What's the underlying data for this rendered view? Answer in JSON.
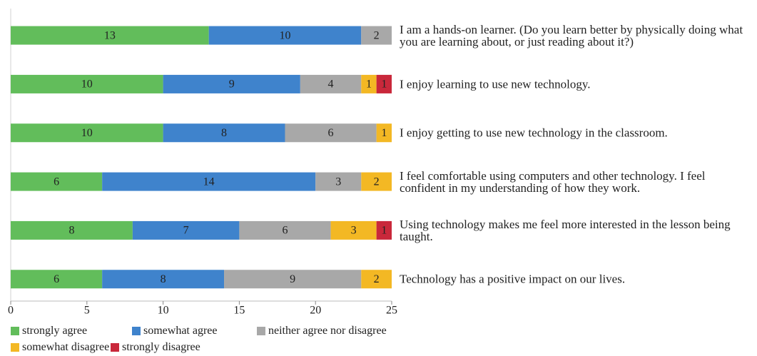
{
  "chart_data": {
    "type": "stacked-bar-horizontal",
    "categories": [
      "I am a hands-on learner. (Do you learn better by physically doing what you are learning about, or just reading about it?)",
      "I enjoy learning to use new technology.",
      "I enjoy getting to use new technology in the classroom.",
      "I feel comfortable using computers and other technology. I feel confident in my understanding of how they work.",
      "Using technology makes me feel more interested in the lesson being taught.",
      "Technology has a positive impact on our lives."
    ],
    "series": [
      {
        "name": "strongly agree",
        "color": "#62bd5b",
        "values": [
          13,
          10,
          10,
          6,
          8,
          6
        ]
      },
      {
        "name": "somewhat agree",
        "color": "#3f83cc",
        "values": [
          10,
          9,
          8,
          14,
          7,
          8
        ]
      },
      {
        "name": "neither agree nor disagree",
        "color": "#a8a8a8",
        "values": [
          2,
          4,
          6,
          3,
          6,
          9
        ]
      },
      {
        "name": "somewhat disagree",
        "color": "#f3b824",
        "values": [
          0,
          1,
          1,
          2,
          3,
          2
        ]
      },
      {
        "name": "strongly disagree",
        "color": "#c9283b",
        "values": [
          0,
          1,
          0,
          0,
          1,
          0
        ]
      }
    ],
    "xlim": [
      0,
      25
    ],
    "xticks": [
      0,
      5,
      10,
      15,
      20,
      25
    ],
    "grid": false
  }
}
